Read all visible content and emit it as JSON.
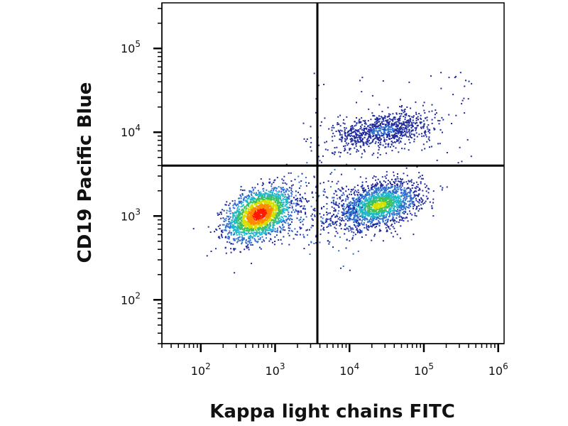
{
  "chart_data": {
    "type": "scatter",
    "xlabel": "Kappa light chains FITC",
    "ylabel": "CD19 Pacific Blue",
    "x_scale": "log",
    "y_scale": "log",
    "xlim": [
      30,
      1200000
    ],
    "ylim": [
      30,
      350000
    ],
    "x_ticks": [
      {
        "value": 100,
        "base": "10",
        "exp": "2"
      },
      {
        "value": 1000,
        "base": "10",
        "exp": "3"
      },
      {
        "value": 10000,
        "base": "10",
        "exp": "4"
      },
      {
        "value": 100000,
        "base": "10",
        "exp": "5"
      },
      {
        "value": 1000000,
        "base": "10",
        "exp": "6"
      }
    ],
    "y_ticks": [
      {
        "value": 100,
        "base": "10",
        "exp": "2"
      },
      {
        "value": 1000,
        "base": "10",
        "exp": "3"
      },
      {
        "value": 10000,
        "base": "10",
        "exp": "4"
      },
      {
        "value": 100000,
        "base": "10",
        "exp": "5"
      }
    ],
    "quadrant_gates": {
      "x": 3700,
      "y": 4000
    },
    "populations": [
      {
        "center_x": 620,
        "center_y": 1050,
        "spread_x_decades": 0.22,
        "spread_y_decades": 0.17,
        "peak_color": "#ff1a00",
        "density": "high"
      },
      {
        "center_x": 25000,
        "center_y": 1350,
        "spread_x_decades": 0.28,
        "spread_y_decades": 0.15,
        "peak_color": "#e8e000",
        "density": "medium"
      },
      {
        "center_x": 28000,
        "center_y": 10500,
        "spread_x_decades": 0.33,
        "spread_y_decades": 0.12,
        "peak_color": "#2a4fa8",
        "density": "low"
      }
    ],
    "colormap": [
      "#1f2a9c",
      "#2f6fd0",
      "#22b7c8",
      "#3cc060",
      "#d6e000",
      "#ff8a00",
      "#ff1a00"
    ],
    "grid": false
  }
}
